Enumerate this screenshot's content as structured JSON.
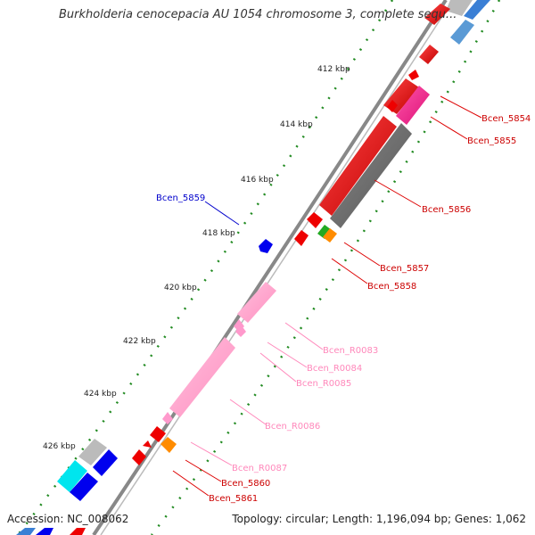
{
  "header": {
    "title": "Burkholderia cenocepacia AU 1054 chromosome 3, complete sequ..."
  },
  "footer": {
    "accession": "Accession: NC_008062",
    "topology": "Topology: circular; Length: 1,196,094 bp; Genes: 1,062"
  },
  "ruler": {
    "ticks": [
      "412 kbp",
      "414 kbp",
      "416 kbp",
      "418 kbp",
      "420 kbp",
      "422 kbp",
      "424 kbp",
      "426 kbp"
    ]
  },
  "genes": {
    "bcen_5854": "Bcen_5854",
    "bcen_5855": "Bcen_5855",
    "bcen_5856": "Bcen_5856",
    "bcen_5857": "Bcen_5857",
    "bcen_5858": "Bcen_5858",
    "bcen_5859": "Bcen_5859",
    "bcen_r0083": "Bcen_R0083",
    "bcen_r0084": "Bcen_R0084",
    "bcen_r0085": "Bcen_R0085",
    "bcen_r0086": "Bcen_R0086",
    "bcen_r0087": "Bcen_R0087",
    "bcen_5860": "Bcen_5860",
    "bcen_5861": "Bcen_5861"
  },
  "colors": {
    "cds_red": "#ee0000",
    "rrna_pink": "#ff99cc",
    "gene_gray": "#666666",
    "magenta": "#ff3399",
    "blue": "#0000ee",
    "cyan": "#00e5ee",
    "orange": "#ff8c00",
    "green": "#22aa22",
    "tick_green": "#228b22",
    "backbone": "#888888"
  }
}
